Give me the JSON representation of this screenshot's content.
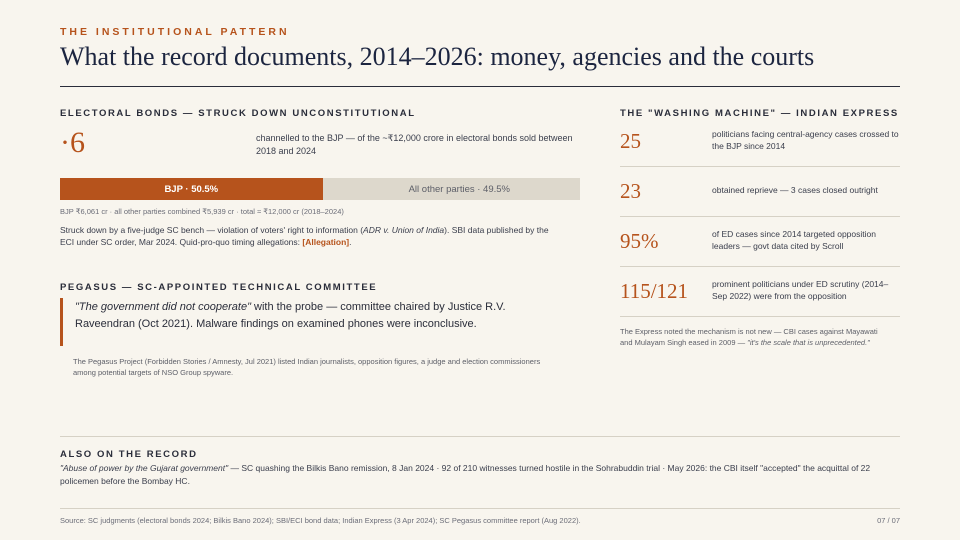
{
  "header": {
    "eyebrow": "THE INSTITUTIONAL PATTERN",
    "title": "What the record documents, 2014–2026: money, agencies and the courts"
  },
  "electoral_bonds": {
    "label": "ELECTORAL BONDS — STRUCK DOWN UNCONSTITUTIONAL",
    "big_figure": "·6",
    "description": "channelled to the BJP — of the ~₹12,000 crore in electoral bonds sold between 2018 and 2024",
    "bar": {
      "bjp_share": 50.5,
      "other_share": 49.5,
      "bjp_label": "BJP · 50.5%",
      "other_label": "All other parties · 49.5%"
    },
    "bar_note": "BJP ₹6,061 cr  ·  all other parties combined ₹5,939 cr  ·  total ≈ ₹12,000 cr (2018–2024)",
    "body_pre": "Struck down by a five-judge SC bench — violation of voters' right to information (",
    "body_case": "ADR v. Union of India",
    "body_post": "). SBI data published by the ECI under SC order, Mar 2024. Quid-pro-quo timing allegations: ",
    "body_tag": "[Allegation]",
    "body_end": "."
  },
  "pegasus": {
    "label": "PEGASUS — SC-APPOINTED TECHNICAL COMMITTEE",
    "quote": "\"The government did not cooperate\"",
    "quote_rest": " with the probe — committee chaired by Justice R.V. Raveendran (Oct 2021). Malware findings on examined phones were inconclusive.",
    "note": "The Pegasus Project (Forbidden Stories / Amnesty, Jul 2021) listed Indian journalists, opposition figures, a judge and election commissioners among potential targets of NSO Group spyware."
  },
  "washing_machine": {
    "label": "THE \"WASHING MACHINE\" — INDIAN EXPRESS",
    "stats": [
      {
        "value": "25",
        "text": "politicians facing central-agency cases crossed to the BJP since 2014"
      },
      {
        "value": "23",
        "text": "obtained reprieve — 3 cases closed outright"
      },
      {
        "value": "95%",
        "text": "of ED cases since 2014 targeted opposition leaders — govt data cited by Scroll"
      },
      {
        "value": "115/121",
        "text": "prominent politicians under ED scrutiny (2014–Sep 2022) were from the opposition"
      }
    ],
    "note_pre": "The Express noted the mechanism is not new — CBI cases against Mayawati and Mulayam Singh eased in 2009 — ",
    "note_quote": "\"it's the scale that is unprecedented.\""
  },
  "also": {
    "label": "ALSO ON THE RECORD",
    "quote": "\"Abuse of power by the Gujarat government\"",
    "rest": " — SC quashing the Bilkis Bano remission, 8 Jan 2024  ·  92 of 210 witnesses turned hostile in the Sohrabuddin trial  ·  May 2026: the CBI itself \"accepted\" the acquittal of 22 policemen before the Bombay HC."
  },
  "footer": {
    "source": "Source: SC judgments (electoral bonds 2024; Bilkis Bano 2024); SBI/ECI bond data; Indian Express (3 Apr 2024); SC Pegasus committee report (Aug 2022).",
    "page": "07 / 07"
  },
  "colors": {
    "accent": "#b6531c",
    "background": "#f8f5ee",
    "bar_other": "#ddd8cc"
  }
}
